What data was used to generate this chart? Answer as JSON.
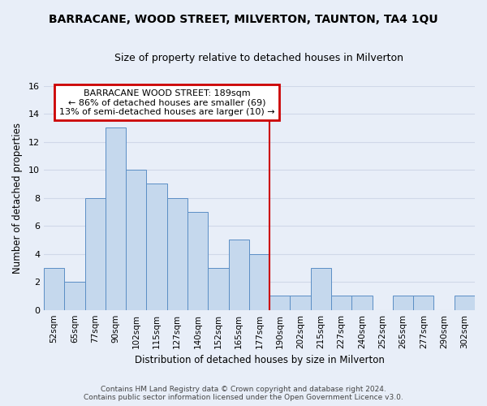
{
  "title": "BARRACANE, WOOD STREET, MILVERTON, TAUNTON, TA4 1QU",
  "subtitle": "Size of property relative to detached houses in Milverton",
  "xlabel": "Distribution of detached houses by size in Milverton",
  "ylabel": "Number of detached properties",
  "bar_labels": [
    "52sqm",
    "65sqm",
    "77sqm",
    "90sqm",
    "102sqm",
    "115sqm",
    "127sqm",
    "140sqm",
    "152sqm",
    "165sqm",
    "177sqm",
    "190sqm",
    "202sqm",
    "215sqm",
    "227sqm",
    "240sqm",
    "252sqm",
    "265sqm",
    "277sqm",
    "290sqm",
    "302sqm"
  ],
  "bar_values": [
    3,
    2,
    8,
    13,
    10,
    9,
    8,
    7,
    3,
    5,
    4,
    1,
    1,
    3,
    1,
    1,
    0,
    1,
    1,
    0,
    1
  ],
  "bar_color": "#c5d8ed",
  "bar_edgecolor": "#5b8ec5",
  "vline_index": 11,
  "vline_color": "#cc0000",
  "annotation_title": "BARRACANE WOOD STREET: 189sqm",
  "annotation_line1": "← 86% of detached houses are smaller (69)",
  "annotation_line2": "13% of semi-detached houses are larger (10) →",
  "annotation_box_edgecolor": "#cc0000",
  "annotation_box_facecolor": "#ffffff",
  "ylim_max": 16,
  "yticks": [
    0,
    2,
    4,
    6,
    8,
    10,
    12,
    14,
    16
  ],
  "grid_color": "#d0d8e8",
  "background_color": "#e8eef8",
  "footer_line1": "Contains HM Land Registry data © Crown copyright and database right 2024.",
  "footer_line2": "Contains public sector information licensed under the Open Government Licence v3.0."
}
